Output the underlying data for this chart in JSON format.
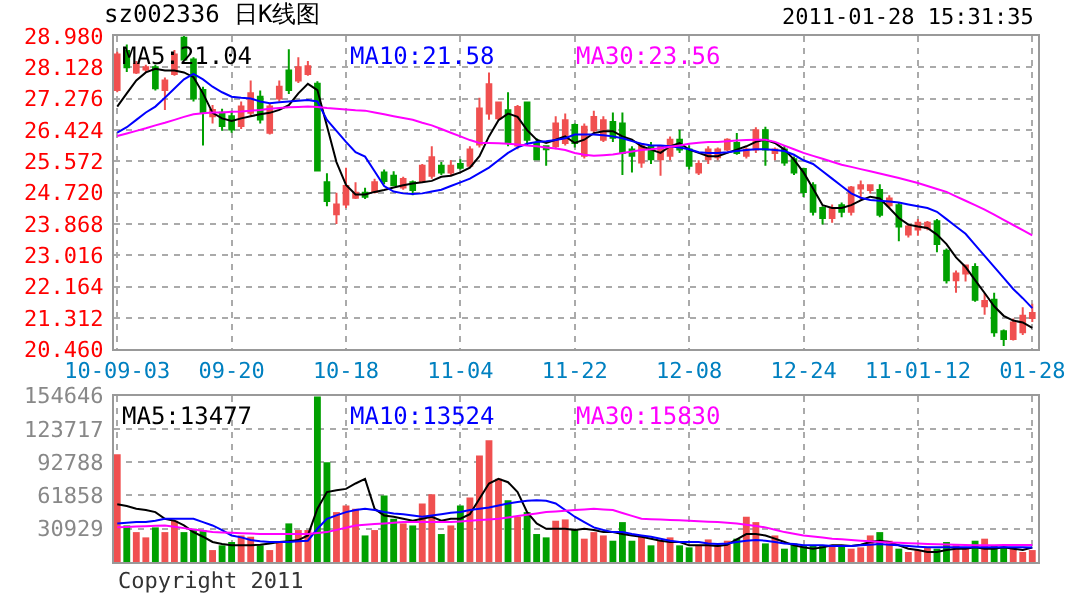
{
  "chart_data": [
    {
      "type": "candlestick",
      "title": "sz002336 日K线图",
      "annotations": [
        "2011-01-28 15:31:35"
      ],
      "categories": [
        "10-09-03",
        null,
        null,
        null,
        null,
        null,
        null,
        null,
        null,
        null,
        null,
        null,
        "09-20",
        null,
        null,
        null,
        null,
        null,
        null,
        null,
        null,
        null,
        null,
        null,
        "10-18",
        null,
        null,
        null,
        null,
        null,
        null,
        null,
        null,
        null,
        null,
        null,
        "11-04",
        null,
        null,
        null,
        null,
        null,
        null,
        null,
        null,
        null,
        null,
        null,
        "11-22",
        null,
        null,
        null,
        null,
        null,
        null,
        null,
        null,
        null,
        null,
        null,
        "12-08",
        null,
        null,
        null,
        null,
        null,
        null,
        null,
        null,
        null,
        null,
        null,
        "12-24",
        null,
        null,
        null,
        null,
        null,
        null,
        null,
        null,
        null,
        null,
        null,
        "11-01-12",
        null,
        null,
        null,
        null,
        null,
        null,
        null,
        null,
        null,
        null,
        null,
        "01-28"
      ],
      "ylim": [
        20.46,
        28.98
      ],
      "yticks": [
        {
          "value": 28.98,
          "label": "28.980"
        },
        28.128,
        27.276,
        26.424,
        25.572,
        {
          "value": 24.72,
          "label": "24.720"
        },
        23.868,
        23.016,
        22.164,
        21.312,
        {
          "value": 20.46,
          "label": "20.460"
        }
      ],
      "grid": true,
      "series": [
        {
          "type": "line",
          "name": "MA5:21.04",
          "color": "#000000",
          "values": [
            27.06,
            27.42,
            27.77,
            27.99,
            28.09,
            28.04,
            28.04,
            27.99,
            27.86,
            27.42,
            26.89,
            26.74,
            26.67,
            26.74,
            26.8,
            26.85,
            26.89,
            26.97,
            27.1,
            27.42,
            27.68,
            27.51,
            26.53,
            25.55,
            24.93,
            24.67,
            24.67,
            24.74,
            24.79,
            24.86,
            24.92,
            24.97,
            25.0,
            25.04,
            25.15,
            25.18,
            25.27,
            25.4,
            25.71,
            26.25,
            26.69,
            26.87,
            26.78,
            26.42,
            26.16,
            26.07,
            26.16,
            26.25,
            26.07,
            26.16,
            26.34,
            26.39,
            26.39,
            26.25,
            26.16,
            25.98,
            25.89,
            25.8,
            25.98,
            26.07,
            25.89,
            25.8,
            25.71,
            25.71,
            25.8,
            25.89,
            25.98,
            26.1,
            26.16,
            26.07,
            25.89,
            25.62,
            25.27,
            24.83,
            24.38,
            24.3,
            24.3,
            24.38,
            24.51,
            24.61,
            24.56,
            24.3,
            24.03,
            23.85,
            23.8,
            23.76,
            23.58,
            23.32,
            22.96,
            22.7,
            22.34,
            21.99,
            21.63,
            21.37,
            21.24,
            21.19,
            21.04
          ]
        },
        {
          "type": "line",
          "name": "MA10:21.58",
          "color": "#0000ff",
          "values": [
            26.35,
            26.5,
            26.7,
            26.9,
            27.06,
            27.3,
            27.55,
            27.8,
            27.95,
            27.8,
            27.6,
            27.45,
            27.33,
            27.3,
            27.28,
            27.2,
            27.15,
            27.18,
            27.2,
            27.22,
            27.24,
            27.2,
            26.7,
            26.4,
            26.1,
            25.82,
            25.7,
            25.3,
            24.9,
            24.75,
            24.7,
            24.68,
            24.7,
            24.75,
            24.8,
            24.9,
            25.0,
            25.1,
            25.25,
            25.4,
            25.6,
            25.8,
            25.95,
            26.05,
            26.1,
            26.12,
            26.15,
            26.2,
            26.3,
            26.3,
            26.3,
            26.28,
            26.25,
            26.2,
            26.12,
            26.05,
            26.0,
            26.0,
            25.98,
            25.95,
            25.9,
            25.82,
            25.8,
            25.8,
            25.82,
            25.85,
            25.88,
            25.9,
            25.9,
            25.88,
            25.85,
            25.75,
            25.6,
            25.5,
            25.3,
            25.1,
            24.9,
            24.7,
            24.58,
            24.52,
            24.5,
            24.48,
            24.45,
            24.4,
            24.35,
            24.3,
            24.2,
            24.0,
            23.8,
            23.6,
            23.3,
            23.0,
            22.7,
            22.4,
            22.1,
            21.85,
            21.58
          ]
        },
        {
          "type": "line",
          "name": "MA30:23.56",
          "color": "#ff00ff",
          "values": [
            26.26,
            26.33,
            26.4,
            26.47,
            26.55,
            26.62,
            26.7,
            26.78,
            26.85,
            26.88,
            26.9,
            26.9,
            26.92,
            26.93,
            26.95,
            26.97,
            27.0,
            27.02,
            27.04,
            27.05,
            27.06,
            27.05,
            27.02,
            27.0,
            26.98,
            26.96,
            26.95,
            26.9,
            26.85,
            26.8,
            26.75,
            26.7,
            26.62,
            26.55,
            26.45,
            26.35,
            26.25,
            26.15,
            26.07,
            26.07,
            26.06,
            26.05,
            26.03,
            26.0,
            25.98,
            25.95,
            25.92,
            25.88,
            25.8,
            25.75,
            25.72,
            25.74,
            25.76,
            25.8,
            25.84,
            25.88,
            25.9,
            25.93,
            25.97,
            26.0,
            26.05,
            26.08,
            26.1,
            26.1,
            26.12,
            26.14,
            26.15,
            26.16,
            26.16,
            26.1,
            26.0,
            25.9,
            25.8,
            25.72,
            25.64,
            25.56,
            25.48,
            25.42,
            25.36,
            25.3,
            25.24,
            25.18,
            25.12,
            25.05,
            24.98,
            24.9,
            24.82,
            24.74,
            24.62,
            24.5,
            24.38,
            24.26,
            24.12,
            23.98,
            23.84,
            23.7,
            23.56
          ]
        },
        {
          "ohlc": [
            [
              27.51,
              28.55,
              27.45,
              28.48
            ],
            [
              28.57,
              28.75,
              28.0,
              28.13
            ],
            [
              27.99,
              28.3,
              27.95,
              28.22
            ],
            [
              28.07,
              28.2,
              28.0,
              28.13
            ],
            [
              28.13,
              28.2,
              27.5,
              27.56
            ],
            [
              27.51,
              27.85,
              26.97,
              27.77
            ],
            [
              27.95,
              28.6,
              27.9,
              28.48
            ],
            [
              28.93,
              28.98,
              28.3,
              28.34
            ],
            [
              28.34,
              28.4,
              27.2,
              27.28
            ],
            [
              27.51,
              27.6,
              26.0,
              26.89
            ],
            [
              26.8,
              27.1,
              26.6,
              26.97
            ],
            [
              26.89,
              27.0,
              26.4,
              26.53
            ],
            [
              26.8,
              26.95,
              26.35,
              26.44
            ],
            [
              26.53,
              27.2,
              26.45,
              27.06
            ],
            [
              26.89,
              27.77,
              26.8,
              27.42
            ],
            [
              27.33,
              27.5,
              26.6,
              26.71
            ],
            [
              26.35,
              27.15,
              26.3,
              27.06
            ],
            [
              27.28,
              27.77,
              27.2,
              27.6
            ],
            [
              28.04,
              28.62,
              27.4,
              27.51
            ],
            [
              27.77,
              28.4,
              27.7,
              28.13
            ],
            [
              27.95,
              28.3,
              27.9,
              28.16
            ],
            [
              27.68,
              27.75,
              25.3,
              25.32
            ],
            [
              25.0,
              25.25,
              24.35,
              24.49
            ],
            [
              24.13,
              24.72,
              23.87,
              24.4
            ],
            [
              24.4,
              25.4,
              24.3,
              24.9
            ],
            [
              24.58,
              25.0,
              24.55,
              24.72
            ],
            [
              24.72,
              24.85,
              24.55,
              24.61
            ],
            [
              24.74,
              25.1,
              24.7,
              25.0
            ],
            [
              25.27,
              25.35,
              24.95,
              25.04
            ],
            [
              25.18,
              25.3,
              24.9,
              24.92
            ],
            [
              24.86,
              25.15,
              24.8,
              25.09
            ],
            [
              25.0,
              25.05,
              24.65,
              24.79
            ],
            [
              25.04,
              25.5,
              25.0,
              25.45
            ],
            [
              25.18,
              25.98,
              25.1,
              25.68
            ],
            [
              25.45,
              25.55,
              25.2,
              25.27
            ],
            [
              25.27,
              25.6,
              25.2,
              25.45
            ],
            [
              25.5,
              25.63,
              25.35,
              25.4
            ],
            [
              25.45,
              25.98,
              25.4,
              25.89
            ],
            [
              26.03,
              27.3,
              25.95,
              27.01
            ],
            [
              26.87,
              27.99,
              26.7,
              27.67
            ],
            [
              26.74,
              27.2,
              26.7,
              27.17
            ],
            [
              26.96,
              27.45,
              25.98,
              26.07
            ],
            [
              26.0,
              27.1,
              25.9,
              27.05
            ],
            [
              27.17,
              27.2,
              26.0,
              26.16
            ],
            [
              26.07,
              26.2,
              25.6,
              25.63
            ],
            [
              25.98,
              26.0,
              25.45,
              25.9
            ],
            [
              25.98,
              26.8,
              25.9,
              26.6
            ],
            [
              26.07,
              26.87,
              26.0,
              26.69
            ],
            [
              26.56,
              26.6,
              25.95,
              26.07
            ],
            [
              25.72,
              26.6,
              25.65,
              26.51
            ],
            [
              26.42,
              26.95,
              26.3,
              26.78
            ],
            [
              26.16,
              26.8,
              26.1,
              26.69
            ],
            [
              26.64,
              26.9,
              26.1,
              26.21
            ],
            [
              26.6,
              26.9,
              25.2,
              25.8
            ],
            [
              25.89,
              25.98,
              25.27,
              25.72
            ],
            [
              25.54,
              26.07,
              25.4,
              25.98
            ],
            [
              25.98,
              26.1,
              25.5,
              25.63
            ],
            [
              25.63,
              26.0,
              25.18,
              25.98
            ],
            [
              25.72,
              26.25,
              25.6,
              26.16
            ],
            [
              26.16,
              26.43,
              25.8,
              25.89
            ],
            [
              25.89,
              26.0,
              25.35,
              25.45
            ],
            [
              25.27,
              25.6,
              25.2,
              25.5
            ],
            [
              25.63,
              25.98,
              25.5,
              25.89
            ],
            [
              25.68,
              25.95,
              25.6,
              25.89
            ],
            [
              25.89,
              26.2,
              25.85,
              26.16
            ],
            [
              26.07,
              26.34,
              25.75,
              25.8
            ],
            [
              25.72,
              25.95,
              25.65,
              25.89
            ],
            [
              25.89,
              26.5,
              25.8,
              26.42
            ],
            [
              26.42,
              26.51,
              25.45,
              25.89
            ],
            [
              25.8,
              25.95,
              25.6,
              25.89
            ],
            [
              25.89,
              26.0,
              25.45,
              25.54
            ],
            [
              25.63,
              25.7,
              25.2,
              25.27
            ],
            [
              25.36,
              25.4,
              24.6,
              24.74
            ],
            [
              24.92,
              25.0,
              24.1,
              24.2
            ],
            [
              24.3,
              24.35,
              23.85,
              24.03
            ],
            [
              24.03,
              24.4,
              23.9,
              24.3
            ],
            [
              24.38,
              24.45,
              24.05,
              24.2
            ],
            [
              24.2,
              24.9,
              24.1,
              24.86
            ],
            [
              24.83,
              25.05,
              24.5,
              24.92
            ],
            [
              24.79,
              24.95,
              24.7,
              24.92
            ],
            [
              24.79,
              24.95,
              24.05,
              24.12
            ],
            [
              24.38,
              24.65,
              24.3,
              24.56
            ],
            [
              24.38,
              24.45,
              23.4,
              23.8
            ],
            [
              23.58,
              23.85,
              23.5,
              23.8
            ],
            [
              23.72,
              24.0,
              23.55,
              23.9
            ],
            [
              23.76,
              23.95,
              23.7,
              23.9
            ],
            [
              23.94,
              24.0,
              23.1,
              23.32
            ],
            [
              23.14,
              23.2,
              22.25,
              22.34
            ],
            [
              22.34,
              22.6,
              22.0,
              22.52
            ],
            [
              22.52,
              22.76,
              22.3,
              22.74
            ],
            [
              22.7,
              22.8,
              21.75,
              21.81
            ],
            [
              21.63,
              21.99,
              21.4,
              21.77
            ],
            [
              21.81,
              22.0,
              20.8,
              20.92
            ],
            [
              20.95,
              21.0,
              20.55,
              20.74
            ],
            [
              20.74,
              21.3,
              20.7,
              21.19
            ],
            [
              20.92,
              21.6,
              20.85,
              21.37
            ],
            [
              21.31,
              21.7,
              21.2,
              21.45
            ]
          ],
          "colors": [
            "#f05050",
            "#00a000",
            "#f05050",
            "#f05050",
            "#00a000",
            "#f05050",
            "#f05050",
            "#00a000",
            "#00a000",
            "#00a000",
            "#f05050",
            "#00a000",
            "#00a000",
            "#f05050",
            "#f05050",
            "#00a000",
            "#f05050",
            "#f05050",
            "#00a000",
            "#f05050",
            "#f05050",
            "#00a000",
            "#00a000",
            "#f05050",
            "#f05050",
            "#f05050",
            "#00a000",
            "#f05050",
            "#00a000",
            "#00a000",
            "#f05050",
            "#00a000",
            "#f05050",
            "#f05050",
            "#00a000",
            "#f05050",
            "#00a000",
            "#f05050",
            "#f05050",
            "#f05050",
            "#f05050",
            "#00a000",
            "#f05050",
            "#00a000",
            "#00a000",
            "#00a000",
            "#f05050",
            "#f05050",
            "#00a000",
            "#f05050",
            "#f05050",
            "#f05050",
            "#00a000",
            "#00a000",
            "#00a000",
            "#f05050",
            "#00a000",
            "#f05050",
            "#f05050",
            "#00a000",
            "#00a000",
            "#f05050",
            "#f05050",
            "#f05050",
            "#f05050",
            "#00a000",
            "#f05050",
            "#f05050",
            "#00a000",
            "#f05050",
            "#00a000",
            "#00a000",
            "#00a000",
            "#00a000",
            "#00a000",
            "#f05050",
            "#00a000",
            "#f05050",
            "#f05050",
            "#f05050",
            "#00a000",
            "#f05050",
            "#00a000",
            "#f05050",
            "#f05050",
            "#f05050",
            "#00a000",
            "#00a000",
            "#f05050",
            "#f05050",
            "#00a000",
            "#f05050",
            "#00a000",
            "#00a000",
            "#f05050",
            "#f05050",
            "#f05050"
          ]
        }
      ]
    },
    {
      "type": "bar",
      "annotations": [
        "Copyright 2011"
      ],
      "ylim": [
        0,
        154646
      ],
      "yticks": [
        30929,
        61858,
        92788,
        123717,
        154646
      ],
      "grid": true,
      "tick_labels": "y",
      "series": [
        {
          "values": [
            100200,
            34000,
            27800,
            22900,
            32200,
            27800,
            38400,
            27800,
            30900,
            29700,
            11100,
            15500,
            18600,
            24700,
            23500,
            15500,
            11100,
            18600,
            35900,
            29700,
            29700,
            154000,
            92800,
            46400,
            52600,
            49500,
            24700,
            29700,
            61900,
            40200,
            35900,
            34000,
            54400,
            63100,
            26000,
            34000,
            52600,
            60000,
            99000,
            113200,
            77300,
            57500,
            42100,
            46400,
            26000,
            22900,
            38400,
            39600,
            29700,
            21700,
            27800,
            24700,
            19800,
            37100,
            19800,
            24700,
            15500,
            19800,
            22900,
            15500,
            13600,
            15500,
            21000,
            15500,
            19800,
            21700,
            42100,
            37100,
            17300,
            24700,
            12400,
            17300,
            15500,
            15500,
            15500,
            15500,
            15500,
            12400,
            13600,
            24700,
            27800,
            19800,
            12400,
            9300,
            11100,
            13600,
            12400,
            18600,
            15500,
            12400,
            19800,
            21700,
            15500,
            13600,
            12400,
            9300,
            11100
          ],
          "colors": [
            "#f05050",
            "#00a000",
            "#f05050",
            "#f05050",
            "#00a000",
            "#f05050",
            "#f05050",
            "#00a000",
            "#00a000",
            "#00a000",
            "#f05050",
            "#00a000",
            "#00a000",
            "#f05050",
            "#f05050",
            "#00a000",
            "#f05050",
            "#f05050",
            "#00a000",
            "#f05050",
            "#f05050",
            "#00a000",
            "#00a000",
            "#f05050",
            "#f05050",
            "#f05050",
            "#00a000",
            "#f05050",
            "#00a000",
            "#00a000",
            "#f05050",
            "#00a000",
            "#f05050",
            "#f05050",
            "#00a000",
            "#f05050",
            "#00a000",
            "#f05050",
            "#f05050",
            "#f05050",
            "#f05050",
            "#00a000",
            "#f05050",
            "#00a000",
            "#00a000",
            "#00a000",
            "#f05050",
            "#f05050",
            "#00a000",
            "#f05050",
            "#f05050",
            "#f05050",
            "#00a000",
            "#00a000",
            "#00a000",
            "#f05050",
            "#00a000",
            "#f05050",
            "#f05050",
            "#00a000",
            "#00a000",
            "#f05050",
            "#f05050",
            "#f05050",
            "#f05050",
            "#00a000",
            "#f05050",
            "#f05050",
            "#00a000",
            "#f05050",
            "#00a000",
            "#00a000",
            "#00a000",
            "#00a000",
            "#00a000",
            "#f05050",
            "#00a000",
            "#f05050",
            "#f05050",
            "#f05050",
            "#00a000",
            "#f05050",
            "#00a000",
            "#f05050",
            "#f05050",
            "#f05050",
            "#00a000",
            "#00a000",
            "#f05050",
            "#f05050",
            "#00a000",
            "#f05050",
            "#00a000",
            "#00a000",
            "#f05050",
            "#f05050",
            "#f05050"
          ]
        },
        {
          "type": "line",
          "name": "MA5:13477",
          "color": "#000000",
          "values": [
            53800,
            52000,
            49500,
            48300,
            46400,
            40200,
            38400,
            34000,
            27800,
            23500,
            18600,
            16700,
            15500,
            15500,
            15500,
            16100,
            17300,
            18600,
            19200,
            20400,
            24700,
            49500,
            65000,
            66800,
            68000,
            73000,
            77300,
            49500,
            43300,
            42100,
            40200,
            38400,
            40200,
            42100,
            38400,
            40200,
            40200,
            44500,
            58800,
            73000,
            77300,
            74200,
            65000,
            46400,
            35900,
            30900,
            30900,
            30900,
            29700,
            30900,
            29700,
            27800,
            27800,
            26000,
            24700,
            23500,
            21700,
            19800,
            18600,
            18600,
            15500,
            15500,
            15500,
            14800,
            16100,
            21000,
            26000,
            26000,
            24700,
            21700,
            18600,
            15500,
            13600,
            12400,
            13600,
            15500,
            15500,
            14800,
            16100,
            18600,
            19800,
            18600,
            15500,
            12400,
            11100,
            9300,
            9300,
            11100,
            12400,
            12400,
            13600,
            12400,
            12400,
            13600,
            12400,
            11100,
            13477
          ]
        },
        {
          "type": "line",
          "name": "MA10:13524",
          "color": "#0000ff",
          "values": [
            35900,
            36500,
            37100,
            37100,
            38400,
            40200,
            40200,
            40200,
            40200,
            37100,
            34000,
            29700,
            24700,
            22900,
            20400,
            19200,
            18600,
            18600,
            18600,
            19200,
            19800,
            30900,
            40200,
            43300,
            46400,
            48300,
            49500,
            48300,
            46400,
            45200,
            44500,
            43300,
            42100,
            43300,
            44500,
            45800,
            46400,
            48300,
            49500,
            50700,
            52600,
            54400,
            55700,
            56900,
            57500,
            56900,
            54400,
            48300,
            42100,
            37100,
            32200,
            29700,
            27800,
            27800,
            26000,
            24700,
            23500,
            21700,
            19800,
            18600,
            18600,
            18600,
            17300,
            16700,
            17300,
            18600,
            19800,
            20400,
            19800,
            18600,
            17300,
            16700,
            15500,
            15500,
            15500,
            14800,
            14800,
            14800,
            15500,
            16100,
            16700,
            16100,
            15500,
            14800,
            14200,
            13600,
            13600,
            13600,
            13600,
            13600,
            13600,
            13600,
            13600,
            13600,
            13600,
            13600,
            13524
          ]
        },
        {
          "type": "line",
          "name": "MA30:15830",
          "color": "#ff00ff",
          "values": [
            32200,
            32600,
            33000,
            33300,
            33700,
            34000,
            32800,
            31500,
            30300,
            29000,
            27800,
            27400,
            27100,
            26700,
            26400,
            26000,
            26000,
            26000,
            26000,
            26000,
            26000,
            26900,
            27800,
            29900,
            31900,
            34000,
            34600,
            35300,
            35900,
            36500,
            37100,
            37100,
            37100,
            37100,
            37100,
            37100,
            37700,
            38400,
            39000,
            39600,
            40200,
            41400,
            42700,
            43900,
            45200,
            46400,
            47000,
            47700,
            48300,
            48900,
            49500,
            48900,
            48300,
            45600,
            42900,
            40200,
            39800,
            39500,
            39100,
            38800,
            38400,
            37900,
            37500,
            37100,
            36500,
            35900,
            34700,
            33500,
            32200,
            30000,
            27800,
            26300,
            24700,
            23700,
            22700,
            21700,
            21100,
            20500,
            19800,
            19200,
            18600,
            18200,
            17800,
            17500,
            17100,
            16700,
            16500,
            16300,
            16000,
            15800,
            15500,
            15600,
            15600,
            15700,
            15700,
            15800,
            15830
          ]
        }
      ]
    }
  ]
}
